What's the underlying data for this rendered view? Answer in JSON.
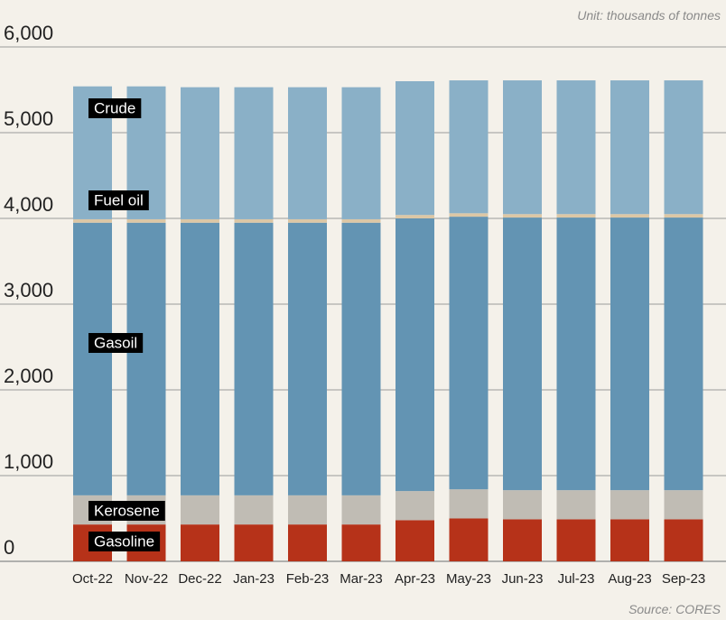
{
  "unit_note": "Unit: thousands of tonnes",
  "source_note": "Source: CORES",
  "colors": {
    "background": "#f4f1ea",
    "grid": "#9a9a9a",
    "Gasoline": "#b63219",
    "Kerosene": "#c0bcb4",
    "Gasoil": "#6394b3",
    "Fuel oil": "#dcc7a5",
    "Crude": "#8ab0c7",
    "label_bg": "#000000"
  },
  "chart_data": {
    "type": "bar",
    "stacked": true,
    "categories": [
      "Oct-22",
      "Nov-22",
      "Dec-22",
      "Jan-23",
      "Feb-23",
      "Mar-23",
      "Apr-23",
      "May-23",
      "Jun-23",
      "Jul-23",
      "Aug-23",
      "Sep-23"
    ],
    "series": [
      {
        "name": "Gasoline",
        "values": [
          430,
          430,
          430,
          430,
          430,
          430,
          480,
          500,
          490,
          490,
          490,
          490
        ]
      },
      {
        "name": "Kerosene",
        "values": [
          340,
          340,
          340,
          340,
          340,
          340,
          340,
          340,
          340,
          340,
          340,
          340
        ]
      },
      {
        "name": "Gasoil",
        "values": [
          3180,
          3180,
          3180,
          3180,
          3180,
          3180,
          3180,
          3180,
          3180,
          3180,
          3180,
          3180
        ]
      },
      {
        "name": "Fuel oil",
        "values": [
          40,
          40,
          40,
          40,
          40,
          40,
          40,
          40,
          40,
          40,
          40,
          40
        ]
      },
      {
        "name": "Crude",
        "values": [
          1550,
          1550,
          1540,
          1540,
          1540,
          1540,
          1560,
          1550,
          1560,
          1560,
          1560,
          1560
        ]
      }
    ],
    "ylim": [
      0,
      6000
    ],
    "yticks": [
      0,
      1000,
      2000,
      3000,
      4000,
      5000,
      6000
    ],
    "ytick_labels": [
      "0",
      "1,000",
      "2,000",
      "3,000",
      "4,000",
      "5,000",
      "6,000"
    ],
    "grid": true,
    "series_labels": [
      "Crude",
      "Fuel oil",
      "Gasoil",
      "Kerosene",
      "Gasoline"
    ],
    "xlabel": "",
    "ylabel": ""
  }
}
